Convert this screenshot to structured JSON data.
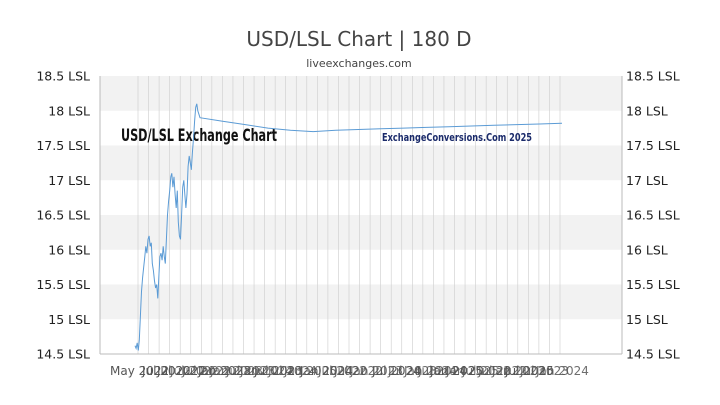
{
  "header": {
    "title": "USD/LSL Chart | 180 D",
    "subtitle": "liveexchanges.com"
  },
  "watermark": {
    "left_text": "USD/LSL Exchange Chart",
    "right_text": "ExchangeConversions.Com 2025"
  },
  "colors": {
    "line": "#5b9bd5",
    "band": "#f2f2f2",
    "grid": "#cccccc",
    "axis": "#bbbbbb"
  },
  "chart_data": {
    "type": "line",
    "title": "USD/LSL Chart | 180 D",
    "subtitle": "liveexchanges.com",
    "xlabel": "",
    "ylabel": "",
    "ylim": [
      14.5,
      18.5
    ],
    "y_ticks": [
      "14.5 LSL",
      "15 LSL",
      "15.5 LSL",
      "16 LSL",
      "16.5 LSL",
      "17 LSL",
      "17.5 LSL",
      "18 LSL",
      "18.5 LSL"
    ],
    "x_tick_labels": [
      "May 2022",
      "Jul 2022",
      "Jul 2022",
      "Jan 2023",
      "Jul 2023",
      "Jan 2024",
      "Jul 2024",
      "Jan 2025",
      "Jul 2025"
    ],
    "legend": "none",
    "grid": true,
    "series": [
      {
        "values": [
          14.62,
          14.58,
          14.66,
          14.55,
          14.7,
          15.05,
          15.4,
          15.6,
          15.75,
          15.9,
          16.05,
          15.95,
          16.15,
          16.2,
          16.05,
          16.1,
          15.8,
          15.7,
          15.55,
          15.45,
          15.5,
          15.3,
          15.6,
          15.9,
          15.95,
          15.85,
          16.05,
          15.9,
          15.8,
          16.15,
          16.5,
          16.7,
          16.85,
          17.05,
          17.1,
          16.9,
          17.05,
          16.8,
          16.6,
          16.85,
          16.4,
          16.2,
          16.15,
          16.5,
          16.9,
          17.0,
          16.8,
          16.6,
          16.8,
          17.2,
          17.35,
          17.25,
          17.15,
          17.4,
          17.6,
          17.85,
          18.05,
          18.1,
          18.0,
          17.95,
          17.9,
          17.85,
          17.8,
          17.75,
          17.72,
          17.7,
          17.72,
          17.73,
          17.74,
          17.75,
          17.76,
          17.77,
          17.78,
          17.79,
          17.8,
          17.81,
          17.82
        ]
      }
    ]
  }
}
